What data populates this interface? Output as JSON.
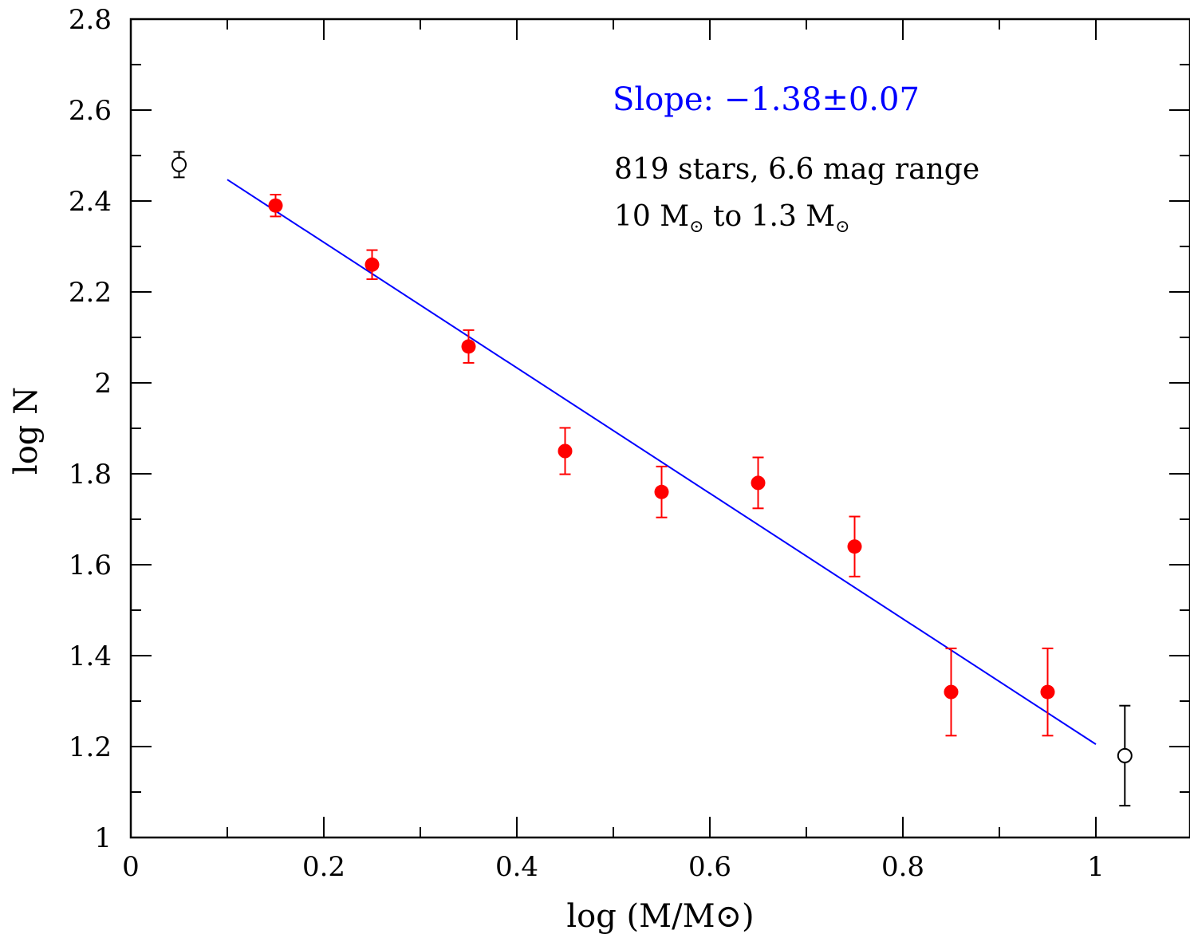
{
  "colors": {
    "fit_line": "#0000ff",
    "fitted_points": "#ff0000",
    "excluded_points": "#000000",
    "slope_text": "#0000ff"
  },
  "chart_data": {
    "type": "scatter",
    "title": "",
    "xlabel": "log (M/M⊙)",
    "ylabel": "log N",
    "xlim": [
      0,
      1.1
    ],
    "ylim": [
      1,
      2.8
    ],
    "x_ticks": [
      0,
      0.2,
      0.4,
      0.6,
      0.8,
      1
    ],
    "x_tick_labels": [
      "0",
      "0.2",
      "0.4",
      "0.6",
      "0.8",
      "1"
    ],
    "y_ticks": [
      1,
      1.2,
      1.4,
      1.6,
      1.8,
      2,
      2.2,
      2.4,
      2.6,
      2.8
    ],
    "y_tick_labels": [
      "1",
      "1.2",
      "1.4",
      "1.6",
      "1.8",
      "2",
      "2.2",
      "2.4",
      "2.6",
      "2.8"
    ],
    "x_minor_step": 0.1,
    "y_minor_step": 0.1,
    "grid": false,
    "series": [
      {
        "marker": "filled-circle",
        "color": "#ff0000",
        "points": [
          {
            "x": 0.15,
            "y": 2.39,
            "yerr_lo": 2.366,
            "yerr_hi": 2.414
          },
          {
            "x": 0.25,
            "y": 2.26,
            "yerr_lo": 2.228,
            "yerr_hi": 2.292
          },
          {
            "x": 0.35,
            "y": 2.08,
            "yerr_lo": 2.044,
            "yerr_hi": 2.116
          },
          {
            "x": 0.45,
            "y": 1.85,
            "yerr_lo": 1.799,
            "yerr_hi": 1.901
          },
          {
            "x": 0.55,
            "y": 1.76,
            "yerr_lo": 1.704,
            "yerr_hi": 1.816
          },
          {
            "x": 0.65,
            "y": 1.78,
            "yerr_lo": 1.724,
            "yerr_hi": 1.836
          },
          {
            "x": 0.75,
            "y": 1.64,
            "yerr_lo": 1.574,
            "yerr_hi": 1.706
          },
          {
            "x": 0.85,
            "y": 1.32,
            "yerr_lo": 1.224,
            "yerr_hi": 1.416
          },
          {
            "x": 0.95,
            "y": 1.32,
            "yerr_lo": 1.224,
            "yerr_hi": 1.416
          }
        ]
      },
      {
        "marker": "open-circle",
        "color": "#000000",
        "points": [
          {
            "x": 0.05,
            "y": 2.48,
            "yerr_lo": 2.452,
            "yerr_hi": 2.508
          },
          {
            "x": 1.03,
            "y": 1.18,
            "yerr_lo": 1.07,
            "yerr_hi": 1.29
          }
        ]
      }
    ],
    "fit_line": {
      "x1": 0.1,
      "y1": 2.447,
      "x2": 1.0,
      "y2": 1.205,
      "color": "#0000ff"
    },
    "annotations": {
      "slope": "Slope: −1.38±0.07",
      "stars": "819 stars, 6.6 mag range",
      "mass_range": {
        "from_value": "10 M",
        "connector": " to 1.3 M",
        "sun_symbol": "⊙"
      }
    }
  }
}
